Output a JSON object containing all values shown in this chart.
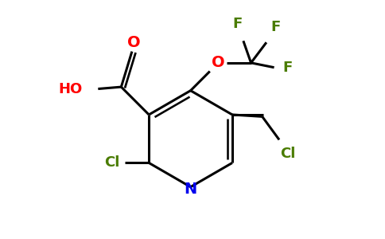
{
  "bg_color": "#ffffff",
  "bond_color": "#000000",
  "atom_colors": {
    "O": "#ff0000",
    "N": "#0000ee",
    "Cl": "#4a7c00",
    "F": "#4a7c00",
    "C": "#000000"
  },
  "figsize": [
    4.84,
    3.0
  ],
  "dpi": 100,
  "xlim": [
    0,
    9.5
  ],
  "ylim": [
    0,
    6.2
  ]
}
